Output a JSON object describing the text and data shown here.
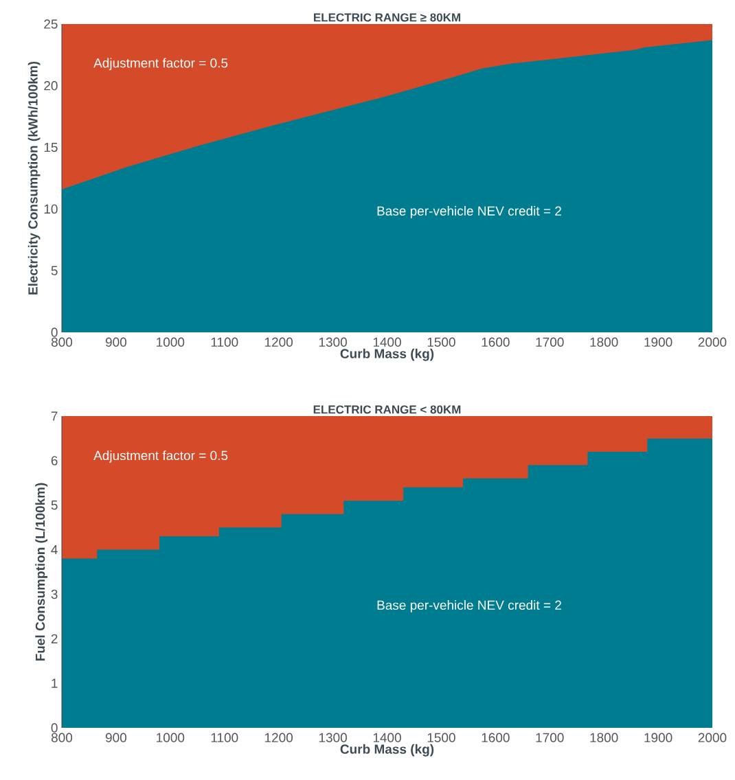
{
  "chart_data": [
    {
      "type": "area",
      "title": "ELECTRIC RANGE ≥ 80KM",
      "xlabel": "Curb Mass (kg)",
      "ylabel": "Electricity Consumption (kWh/100km)",
      "x": [
        800,
        920,
        1050,
        1175,
        1280,
        1395,
        1475,
        1530,
        1575,
        1630,
        1735,
        1855,
        1875,
        2000
      ],
      "series": [
        {
          "color": "#007c91",
          "values": [
            11.6,
            13.4,
            15.1,
            16.6,
            17.8,
            19.1,
            20.1,
            20.8,
            21.4,
            21.8,
            22.3,
            22.9,
            23.1,
            23.7
          ]
        }
      ],
      "xlim": [
        800,
        2000
      ],
      "ylim": [
        0,
        25
      ],
      "xticks": [
        800,
        900,
        1000,
        1100,
        1200,
        1300,
        1400,
        1500,
        1600,
        1700,
        1800,
        1900,
        2000
      ],
      "yticks": [
        0,
        5,
        10,
        15,
        20,
        25
      ],
      "bands": [
        {
          "axis": "y",
          "from": 0,
          "to": 25,
          "color": "#d54a29",
          "label": "Adjustment factor = 0.5"
        }
      ],
      "annotations": [
        "Base per-vehicle NEV credit = 2"
      ]
    },
    {
      "type": "area",
      "title": "ELECTRIC RANGE < 80KM",
      "xlabel": "Curb Mass (kg)",
      "ylabel": "Fuel Consumption (L/100km)",
      "x": [
        800,
        865,
        865,
        980,
        980,
        1090,
        1090,
        1205,
        1205,
        1320,
        1320,
        1430,
        1430,
        1540,
        1540,
        1660,
        1660,
        1770,
        1770,
        1880,
        1880,
        2000
      ],
      "series": [
        {
          "color": "#007c91",
          "values": [
            3.8,
            3.8,
            4.0,
            4.0,
            4.3,
            4.3,
            4.5,
            4.5,
            4.8,
            4.8,
            5.1,
            5.1,
            5.4,
            5.4,
            5.6,
            5.6,
            5.9,
            5.9,
            6.2,
            6.2,
            6.5,
            6.5
          ]
        }
      ],
      "xlim": [
        800,
        2000
      ],
      "ylim": [
        0,
        7
      ],
      "xticks": [
        800,
        900,
        1000,
        1100,
        1200,
        1300,
        1400,
        1500,
        1600,
        1700,
        1800,
        1900,
        2000
      ],
      "yticks": [
        0,
        1,
        2,
        3,
        4,
        5,
        6,
        7
      ],
      "bands": [
        {
          "axis": "y",
          "from": 0,
          "to": 7,
          "color": "#d54a29",
          "label": "Adjustment factor = 0.5"
        }
      ],
      "annotations": [
        "Base per-vehicle NEV credit = 2"
      ]
    }
  ]
}
